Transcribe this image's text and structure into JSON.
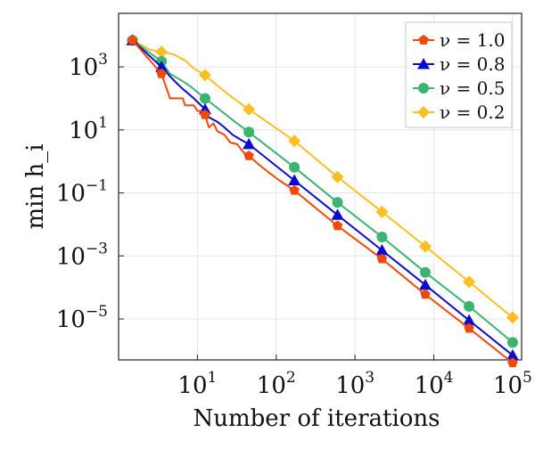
{
  "chart_data": {
    "type": "line",
    "xlabel": "Number of iterations",
    "ylabel": "min h_i",
    "x_scale": "log",
    "y_scale": "log",
    "xlim": [
      1,
      130000
    ],
    "ylim": [
      5e-07,
      50000
    ],
    "x_ticks": [
      {
        "value": 10,
        "base": "10",
        "exp": "1"
      },
      {
        "value": 100,
        "base": "10",
        "exp": "2"
      },
      {
        "value": 1000,
        "base": "10",
        "exp": "3"
      },
      {
        "value": 10000,
        "base": "10",
        "exp": "4"
      },
      {
        "value": 100000,
        "base": "10",
        "exp": "5"
      }
    ],
    "y_ticks": [
      {
        "value": 1000,
        "base": "10",
        "exp": "3"
      },
      {
        "value": 10,
        "base": "10",
        "exp": "1"
      },
      {
        "value": 0.1,
        "base": "10",
        "exp": "−1"
      },
      {
        "value": 0.001,
        "base": "10",
        "exp": "−3"
      },
      {
        "value": 1e-05,
        "base": "10",
        "exp": "−5"
      }
    ],
    "grid": true,
    "legend_position": "top-right",
    "series": [
      {
        "name": "ν = 1.0",
        "color": "#f04a0a",
        "marker": "pentagon",
        "markers": {
          "x": [
            1.5,
            3.5,
            12.5,
            45,
            170,
            600,
            2200,
            7800,
            28000,
            100000
          ],
          "y": [
            7000,
            600,
            30,
            1.5,
            0.12,
            0.009,
            0.0008,
            6e-05,
            5e-06,
            4e-07
          ]
        },
        "line": {
          "x": [
            1.5,
            3.5,
            4.5,
            6.5,
            7,
            9,
            10,
            11,
            12.5,
            14,
            16,
            18,
            22,
            26,
            32,
            38,
            45,
            60,
            80,
            110,
            170,
            600,
            2200,
            7800,
            28000,
            100000
          ],
          "y": [
            7000,
            600,
            100,
            100,
            60,
            60,
            40,
            40,
            30,
            12,
            16,
            9,
            7,
            4,
            3.5,
            2,
            1.5,
            0.8,
            0.45,
            0.25,
            0.12,
            0.009,
            0.0008,
            6e-05,
            5e-06,
            4e-07
          ]
        }
      },
      {
        "name": "ν = 0.8",
        "color": "#0a0acf",
        "marker": "triangle",
        "markers": {
          "x": [
            1.5,
            3.5,
            12.5,
            45,
            170,
            600,
            2200,
            7800,
            28000,
            100000
          ],
          "y": [
            7000,
            1000,
            45,
            3.5,
            0.25,
            0.02,
            0.0015,
            0.00012,
            9e-06,
            7e-07
          ]
        },
        "line": {
          "x": [
            1.5,
            3.5,
            4.5,
            5.5,
            6.5,
            7.5,
            9,
            12.5,
            14,
            18,
            22,
            28,
            35,
            45,
            170,
            600,
            2200,
            7800,
            28000,
            100000
          ],
          "y": [
            7000,
            1000,
            500,
            300,
            200,
            150,
            100,
            45,
            25,
            18,
            12,
            7,
            5,
            3.5,
            0.25,
            0.02,
            0.0015,
            0.00012,
            9e-06,
            7e-07
          ]
        }
      },
      {
        "name": "ν = 0.5",
        "color": "#3cb371",
        "marker": "circle",
        "markers": {
          "x": [
            1.5,
            3.5,
            12.5,
            45,
            170,
            600,
            2200,
            7800,
            28000,
            100000
          ],
          "y": [
            7000,
            1500,
            100,
            8.5,
            0.65,
            0.05,
            0.004,
            0.0003,
            2.5e-05,
            1.8e-06
          ]
        },
        "line": {
          "x": [
            1.5,
            3.5,
            4.5,
            6,
            8,
            12.5,
            20,
            30,
            45,
            170,
            600,
            2200,
            7800,
            28000,
            100000
          ],
          "y": [
            7000,
            1500,
            600,
            400,
            250,
            100,
            40,
            18,
            8.5,
            0.65,
            0.05,
            0.004,
            0.0003,
            2.5e-05,
            1.8e-06
          ]
        }
      },
      {
        "name": "ν = 0.2",
        "color": "#fbbf24",
        "marker": "diamond",
        "markers": {
          "x": [
            1.5,
            3.5,
            12.5,
            45,
            170,
            600,
            2200,
            7800,
            28000,
            100000
          ],
          "y": [
            7000,
            3000,
            550,
            45,
            4.5,
            0.32,
            0.025,
            0.002,
            0.00015,
            1.1e-05
          ]
        },
        "line": {
          "x": [
            1.5,
            2.5,
            3.5,
            5,
            7,
            9,
            12.5,
            18,
            25,
            35,
            45,
            170,
            600,
            2200,
            7800,
            28000,
            100000
          ],
          "y": [
            7000,
            3500,
            3000,
            2500,
            1600,
            900,
            550,
            250,
            130,
            70,
            45,
            4.5,
            0.32,
            0.025,
            0.002,
            0.00015,
            1.1e-05
          ]
        }
      }
    ]
  }
}
